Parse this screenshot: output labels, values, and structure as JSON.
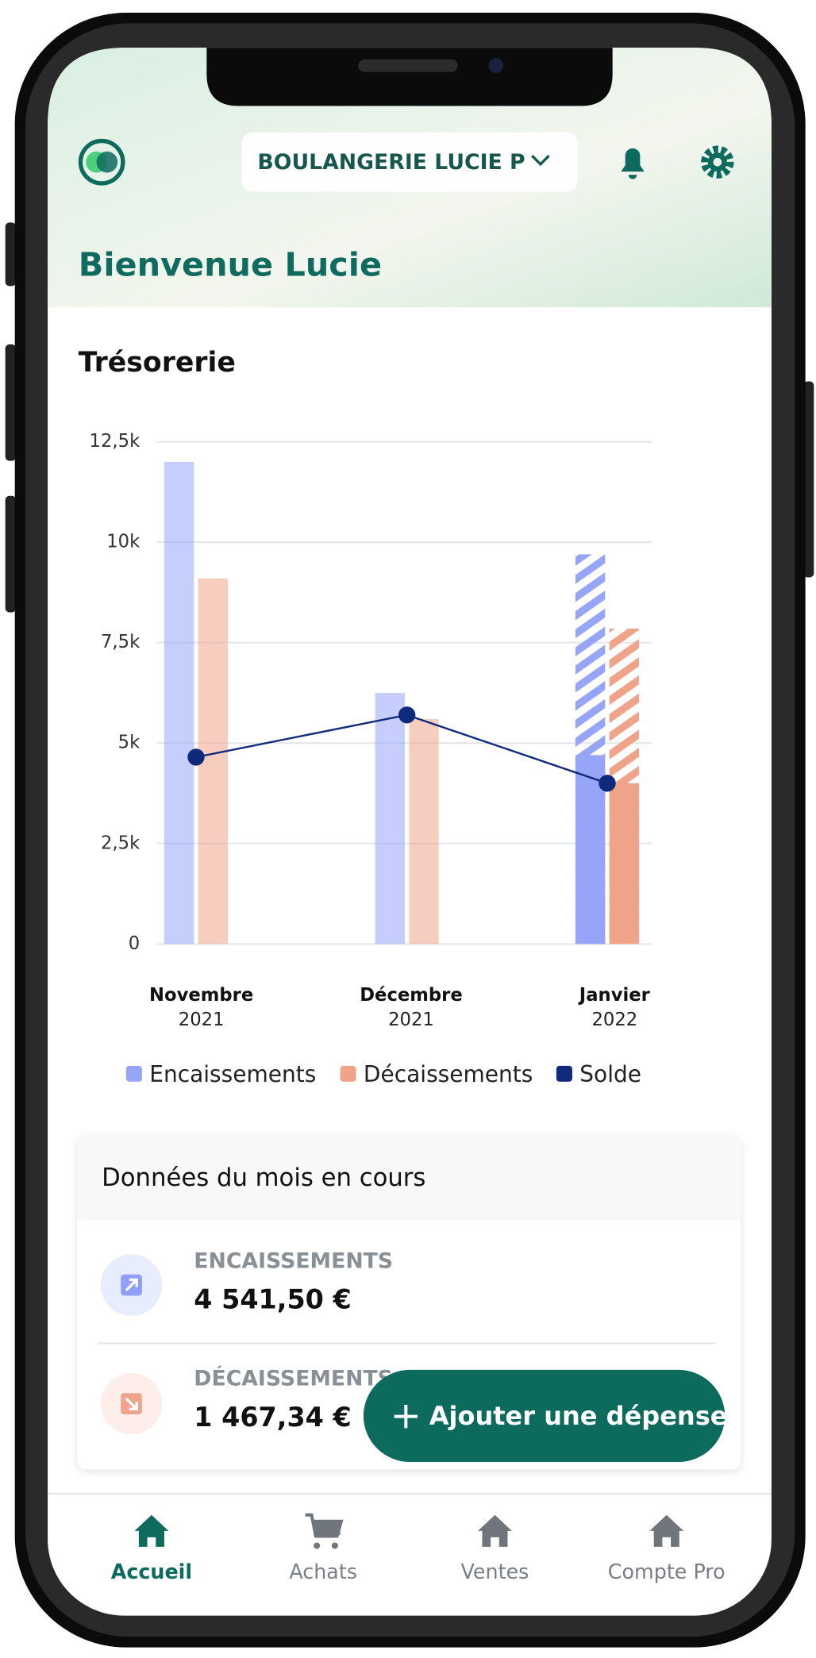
{
  "header": {
    "company": "BOULANGERIE LUCIE P",
    "greeting": "Bienvenue Lucie"
  },
  "chart_data": {
    "type": "bar",
    "title": "Trésorerie",
    "categories": [
      "Novembre",
      "Décembre",
      "Janvier"
    ],
    "category_years": [
      "2021",
      "2021",
      "2022"
    ],
    "series": [
      {
        "name": "Encaissements",
        "kind": "bar",
        "color": "#97a5f9",
        "values": [
          12000,
          6250,
          4700
        ],
        "projected": [
          null,
          null,
          9700
        ]
      },
      {
        "name": "Décaissements",
        "kind": "bar",
        "color": "#efa48a",
        "values": [
          9100,
          5600,
          4000
        ],
        "projected": [
          null,
          null,
          7850
        ]
      },
      {
        "name": "Solde",
        "kind": "line",
        "color": "#0f2a7a",
        "values": [
          4650,
          5700,
          4000
        ]
      }
    ],
    "ylim": [
      0,
      12500
    ],
    "yticks": [
      0,
      {
        "value": 2500,
        "label": "2,5k"
      },
      {
        "value": 5000,
        "label": "5k"
      },
      {
        "value": 7500,
        "label": "7,5k"
      },
      {
        "value": 10000,
        "label": "10k"
      },
      {
        "value": 12500,
        "label": "12,5k"
      }
    ],
    "grid": true
  },
  "current_month": {
    "title": "Données du mois en cours",
    "rows": [
      {
        "label": "ENCAISSEMENTS",
        "value": "4 541,50 €"
      },
      {
        "label": "DÉCAISSEMENTS",
        "value": "1 467,34 €"
      }
    ]
  },
  "fab_label": "Ajouter une dépense",
  "nav": [
    {
      "label": "Accueil"
    },
    {
      "label": "Achats"
    },
    {
      "label": "Ventes"
    },
    {
      "label": "Compte Pro"
    }
  ]
}
